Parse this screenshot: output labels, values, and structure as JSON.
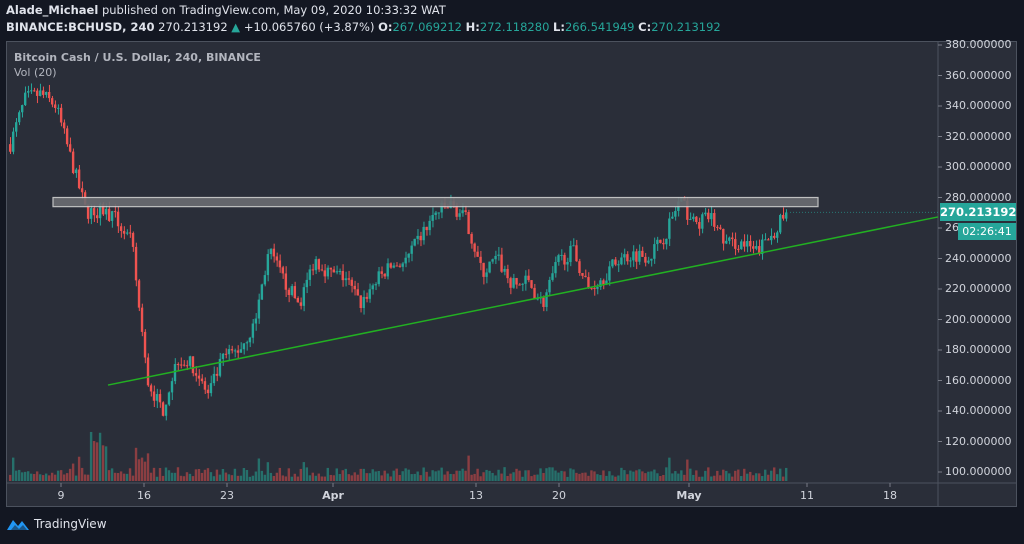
{
  "header": {
    "author": "Alade_Michael",
    "published": "published on TradingView.com, May 09, 2020 10:33:32 WAT",
    "symbol": "BINANCE:BCHUSD, 240",
    "last": "270.213192",
    "change": "+10.065760 (+3.87%)",
    "o_label": "O:",
    "o": "267.069212",
    "h_label": "H:",
    "h": "272.118280",
    "l_label": "L:",
    "l": "266.541949",
    "c_label": "C:",
    "c": "270.213192"
  },
  "legend": {
    "title": "Bitcoin Cash / U.S. Dollar, 240, BINANCE",
    "volume": "Vol (20)"
  },
  "price_tag": "270.213192",
  "timer_tag": "02:26:41",
  "brand": "TradingView",
  "colors": {
    "up": "#26a69a",
    "down": "#ef5350",
    "vol_up": "#26706b",
    "vol_down": "#8b3e42",
    "trendline": "#22b022",
    "resistance_fill": "#6b6d72",
    "resistance_border": "#d0d0d0",
    "background": "#2a2e39"
  },
  "chart_data": {
    "type": "candlestick",
    "title": "Bitcoin Cash / U.S. Dollar, 240, BINANCE",
    "xlabel": "",
    "ylabel": "",
    "y_ticks": [
      "380.000000",
      "360.000000",
      "340.000000",
      "320.000000",
      "300.000000",
      "280.000000",
      "260.000000",
      "240.000000",
      "220.000000",
      "200.000000",
      "180.000000",
      "160.000000",
      "140.000000",
      "120.000000",
      "100.000000"
    ],
    "x_ticks": [
      "9",
      "16",
      "23",
      "Apr",
      "13",
      "20",
      "May",
      "11",
      "18"
    ],
    "ylim": [
      97,
      383
    ],
    "price_path": [
      {
        "date": "Mar 6",
        "price": 315
      },
      {
        "date": "Mar 7",
        "price": 345
      },
      {
        "date": "Mar 8",
        "price": 348
      },
      {
        "date": "Mar 8b",
        "price": 340
      },
      {
        "date": "Mar 9",
        "price": 305
      },
      {
        "date": "Mar 9b",
        "price": 270
      },
      {
        "date": "Mar 10",
        "price": 272
      },
      {
        "date": "Mar 11",
        "price": 265
      },
      {
        "date": "Mar 12",
        "price": 250
      },
      {
        "date": "Mar 12b",
        "price": 160
      },
      {
        "date": "Mar 13",
        "price": 140
      },
      {
        "date": "Mar 14",
        "price": 175
      },
      {
        "date": "Mar 15",
        "price": 170
      },
      {
        "date": "Mar 16",
        "price": 150
      },
      {
        "date": "Mar 17",
        "price": 175
      },
      {
        "date": "Mar 18",
        "price": 180
      },
      {
        "date": "Mar 19",
        "price": 195
      },
      {
        "date": "Mar 20",
        "price": 245
      },
      {
        "date": "Mar 21",
        "price": 225
      },
      {
        "date": "Mar 22",
        "price": 210
      },
      {
        "date": "Mar 23",
        "price": 240
      },
      {
        "date": "Mar 25",
        "price": 230
      },
      {
        "date": "Mar 27",
        "price": 228
      },
      {
        "date": "Mar 29",
        "price": 210
      },
      {
        "date": "Mar 31",
        "price": 225
      },
      {
        "date": "Apr 2",
        "price": 235
      },
      {
        "date": "Apr 4",
        "price": 238
      },
      {
        "date": "Apr 6",
        "price": 255
      },
      {
        "date": "Apr 7",
        "price": 270
      },
      {
        "date": "Apr 8",
        "price": 275
      },
      {
        "date": "Apr 9",
        "price": 265
      },
      {
        "date": "Apr 10",
        "price": 230
      },
      {
        "date": "Apr 12",
        "price": 240
      },
      {
        "date": "Apr 14",
        "price": 222
      },
      {
        "date": "Apr 15",
        "price": 225
      },
      {
        "date": "Apr 16",
        "price": 210
      },
      {
        "date": "Apr 17",
        "price": 238
      },
      {
        "date": "Apr 19",
        "price": 245
      },
      {
        "date": "Apr 20",
        "price": 220
      },
      {
        "date": "Apr 22",
        "price": 228
      },
      {
        "date": "Apr 24",
        "price": 240
      },
      {
        "date": "Apr 26",
        "price": 243
      },
      {
        "date": "Apr 28",
        "price": 242
      },
      {
        "date": "Apr 29",
        "price": 255
      },
      {
        "date": "Apr 30",
        "price": 278
      },
      {
        "date": "May 1",
        "price": 262
      },
      {
        "date": "May 2",
        "price": 268
      },
      {
        "date": "May 3",
        "price": 250
      },
      {
        "date": "May 5",
        "price": 250
      },
      {
        "date": "May 7",
        "price": 244
      },
      {
        "date": "May 8",
        "price": 255
      },
      {
        "date": "May 9",
        "price": 270
      }
    ],
    "resistance_zone": {
      "low": 274,
      "high": 280,
      "from": "Mar 9",
      "to": "May 10"
    },
    "trendline": {
      "from": {
        "date": "Mar 13",
        "price": 157
      },
      "to": {
        "date": "May 22",
        "price": 262
      }
    },
    "last_price": 270.213192,
    "volume_indicator": "Vol (20)"
  }
}
